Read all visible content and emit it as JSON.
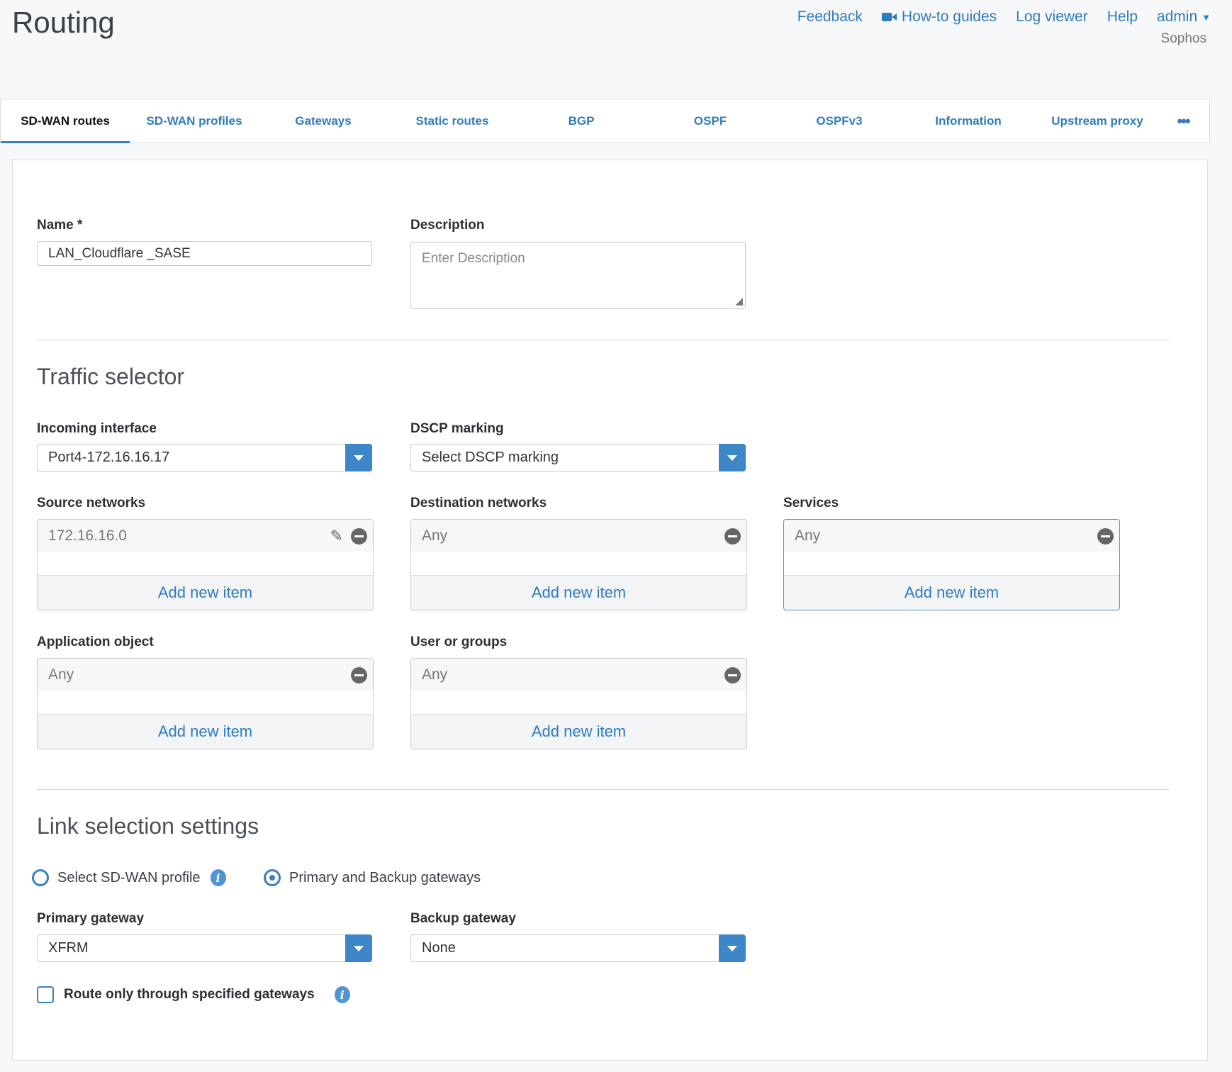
{
  "header": {
    "title": "Routing",
    "links": {
      "feedback": "Feedback",
      "howto": "How-to guides",
      "logviewer": "Log viewer",
      "help": "Help",
      "user": "admin"
    },
    "org": "Sophos"
  },
  "tabs": [
    "SD-WAN routes",
    "SD-WAN profiles",
    "Gateways",
    "Static routes",
    "BGP",
    "OSPF",
    "OSPFv3",
    "Information",
    "Upstream proxy"
  ],
  "form": {
    "name_label": "Name *",
    "name_value": "LAN_Cloudflare _SASE",
    "description_label": "Description",
    "description_placeholder": "Enter Description",
    "traffic_title": "Traffic selector",
    "incoming_label": "Incoming interface",
    "incoming_value": "Port4-172.16.16.17",
    "dscp_label": "DSCP marking",
    "dscp_value": "Select DSCP marking",
    "source_label": "Source networks",
    "source_item": "172.16.16.0",
    "dest_label": "Destination networks",
    "dest_item": "Any",
    "services_label": "Services",
    "services_item": "Any",
    "app_label": "Application object",
    "app_item": "Any",
    "users_label": "User or groups",
    "users_item": "Any",
    "add_new": "Add new item",
    "link_title": "Link selection settings",
    "radio_sdwan": "Select SD-WAN profile",
    "radio_gateways": "Primary and Backup gateways",
    "radio_selected": "Primary and Backup gateways",
    "primary_label": "Primary gateway",
    "primary_value": "XFRM",
    "backup_label": "Backup gateway",
    "backup_value": "None",
    "route_only_label": "Route only through specified gateways",
    "route_only_checked": false
  }
}
